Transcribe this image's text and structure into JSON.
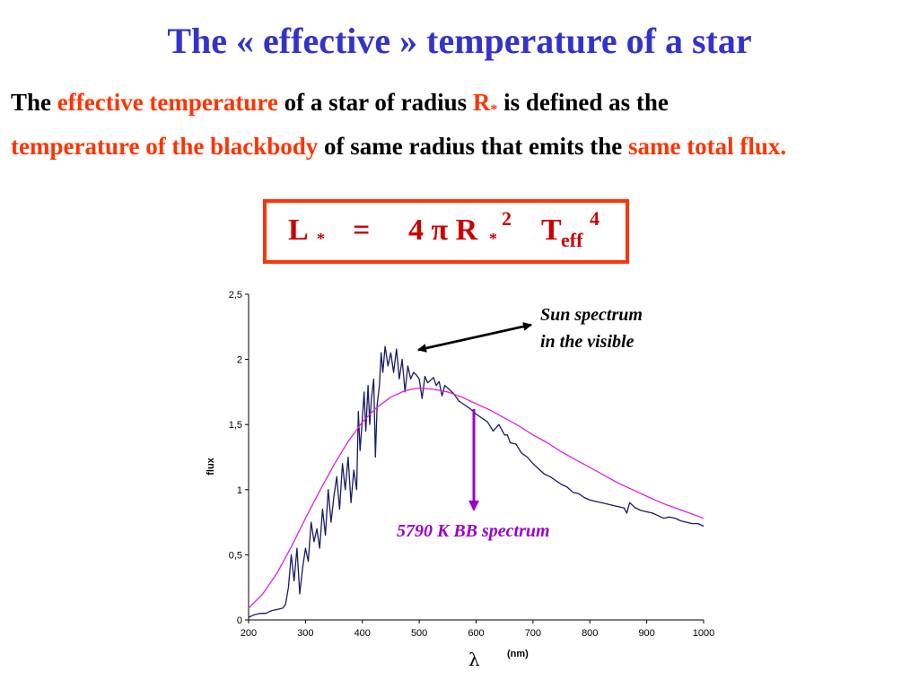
{
  "slide": {
    "title": "The « effective » temperature of a star",
    "definition": {
      "p1": "The ",
      "h1": "effective temperature",
      "p2": " of a star of radius ",
      "h2": "R",
      "h2_sub": "*",
      "p3": " is defined as the ",
      "h3": "temperature of the blackbody",
      "p4": " of same radius that emits the ",
      "h4": "same total flux."
    },
    "formula": {
      "lhs": "L",
      "lhs_sub": "*",
      "eq": "=",
      "coef": "4 π R",
      "r_sub": "*",
      "r_sup": "2",
      "t": "T",
      "t_sub": "eff",
      "t_sup": "4"
    }
  },
  "colors": {
    "title": "#3333cc",
    "highlight": "#ff3300",
    "formula": "#cc0000",
    "sun_series": "#1a1a66",
    "bb_series": "#e020e0",
    "bb_annotation": "#9900cc"
  },
  "chart_data": {
    "type": "line",
    "title": "",
    "xlabel": "(nm)",
    "xlabel_symbol": "λ",
    "ylabel": "flux",
    "xlim": [
      200,
      1000
    ],
    "ylim": [
      0,
      2.5
    ],
    "x_ticks": [
      "200",
      "300",
      "400",
      "500",
      "600",
      "700",
      "800",
      "900",
      "1000"
    ],
    "y_ticks": [
      "0",
      "0,5",
      "1",
      "1,5",
      "2",
      "2,5"
    ],
    "grid": false,
    "series": [
      {
        "name": "Sun spectrum in the visible",
        "x": [
          200,
          210,
          220,
          230,
          240,
          250,
          260,
          265,
          270,
          275,
          280,
          285,
          290,
          295,
          300,
          305,
          310,
          315,
          320,
          325,
          330,
          335,
          340,
          345,
          350,
          355,
          360,
          365,
          370,
          375,
          380,
          385,
          390,
          393,
          396,
          400,
          403,
          406,
          410,
          413,
          416,
          420,
          423,
          426,
          430,
          433,
          436,
          440,
          445,
          450,
          455,
          460,
          465,
          470,
          475,
          480,
          485,
          490,
          495,
          500,
          505,
          510,
          515,
          520,
          525,
          530,
          535,
          540,
          545,
          550,
          560,
          570,
          580,
          590,
          600,
          610,
          620,
          630,
          640,
          650,
          655,
          660,
          670,
          680,
          690,
          700,
          710,
          720,
          730,
          740,
          750,
          760,
          770,
          780,
          790,
          800,
          810,
          820,
          830,
          840,
          850,
          860,
          865,
          870,
          880,
          890,
          900,
          910,
          920,
          930,
          940,
          950,
          960,
          970,
          980,
          990,
          1000
        ],
        "y": [
          0.02,
          0.04,
          0.05,
          0.05,
          0.07,
          0.08,
          0.09,
          0.12,
          0.25,
          0.5,
          0.3,
          0.55,
          0.2,
          0.4,
          0.55,
          0.45,
          0.75,
          0.6,
          0.7,
          0.55,
          0.85,
          0.65,
          1.0,
          0.75,
          0.95,
          1.1,
          0.85,
          1.2,
          1.0,
          1.25,
          0.9,
          1.15,
          1.0,
          1.6,
          1.3,
          1.55,
          1.75,
          1.45,
          1.8,
          1.5,
          1.7,
          1.85,
          1.25,
          1.65,
          1.8,
          2.05,
          1.9,
          2.1,
          1.95,
          2.05,
          1.9,
          2.08,
          1.85,
          2.0,
          1.75,
          1.95,
          1.85,
          1.9,
          1.88,
          1.85,
          1.7,
          1.87,
          1.82,
          1.84,
          1.86,
          1.8,
          1.83,
          1.72,
          1.8,
          1.78,
          1.74,
          1.68,
          1.65,
          1.62,
          1.58,
          1.55,
          1.52,
          1.45,
          1.5,
          1.42,
          1.42,
          1.36,
          1.35,
          1.28,
          1.25,
          1.2,
          1.16,
          1.12,
          1.1,
          1.07,
          1.04,
          1.02,
          0.98,
          0.97,
          0.94,
          0.92,
          0.91,
          0.9,
          0.89,
          0.88,
          0.87,
          0.86,
          0.82,
          0.9,
          0.86,
          0.84,
          0.83,
          0.82,
          0.8,
          0.78,
          0.79,
          0.78,
          0.76,
          0.75,
          0.74,
          0.74,
          0.72
        ]
      },
      {
        "name": "5790 K BB spectrum",
        "x": [
          200,
          225,
          250,
          275,
          300,
          325,
          350,
          375,
          400,
          425,
          450,
          475,
          500,
          525,
          550,
          575,
          600,
          625,
          650,
          675,
          700,
          725,
          750,
          775,
          800,
          825,
          850,
          875,
          900,
          925,
          950,
          975,
          1000
        ],
        "y": [
          0.09,
          0.2,
          0.36,
          0.56,
          0.78,
          0.99,
          1.19,
          1.37,
          1.52,
          1.63,
          1.71,
          1.76,
          1.78,
          1.77,
          1.75,
          1.71,
          1.66,
          1.61,
          1.55,
          1.49,
          1.42,
          1.36,
          1.29,
          1.23,
          1.17,
          1.11,
          1.05,
          1.0,
          0.95,
          0.9,
          0.86,
          0.82,
          0.78
        ]
      }
    ],
    "annotations": [
      {
        "text_line1": "Sun spectrum",
        "text_line2": "in the visible",
        "target": "Sun spectrum in the visible"
      },
      {
        "text": "5790 K BB spectrum",
        "target": "5790 K BB spectrum"
      }
    ]
  }
}
